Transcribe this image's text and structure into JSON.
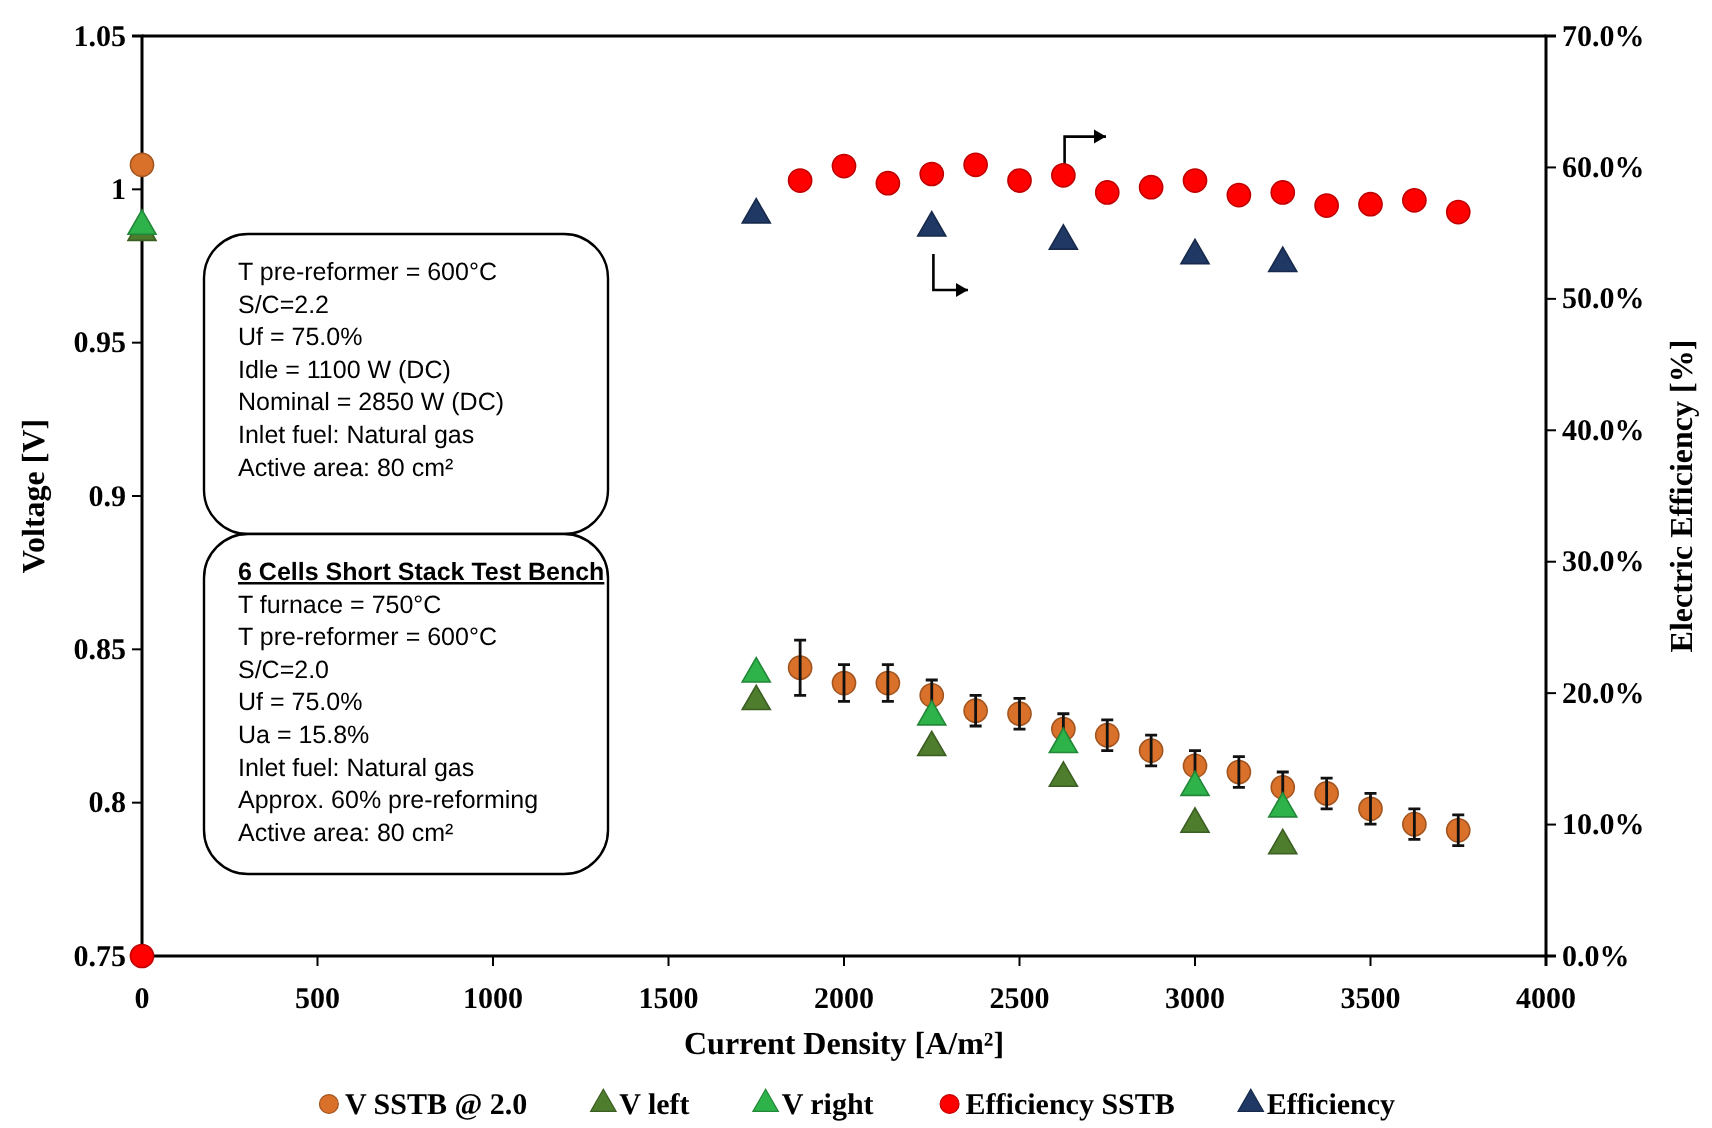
{
  "chart_data": {
    "type": "scatter",
    "xlabel": "Current Density [A/m²]",
    "ylabel": "Voltage [V]",
    "y2label": "Electric Efficiency [%]",
    "xlim": [
      0,
      4000
    ],
    "xticks": [
      0,
      500,
      1000,
      1500,
      2000,
      2500,
      3000,
      3500,
      4000
    ],
    "ylim": [
      0.75,
      1.05
    ],
    "yticks": [
      0.75,
      0.8,
      0.85,
      0.9,
      0.95,
      1,
      1.05
    ],
    "y2lim": [
      0,
      70
    ],
    "y2ticks": [
      {
        "value": 0,
        "label": "0.0%"
      },
      {
        "value": 10,
        "label": "10.0%"
      },
      {
        "value": 20,
        "label": "20.0%"
      },
      {
        "value": 30,
        "label": "30.0%"
      },
      {
        "value": 40,
        "label": "40.0%"
      },
      {
        "value": 50,
        "label": "50.0%"
      },
      {
        "value": 60,
        "label": "60.0%"
      },
      {
        "value": 70,
        "label": "70.0%"
      }
    ],
    "grid": false,
    "legend": "bottom",
    "annotations": [
      "T pre-reformer = 600°C",
      "S/C=2.2",
      "Uf = 75.0%",
      "Idle = 1100 W (DC)",
      "Nominal = 2850 W (DC)",
      "Inlet fuel: Natural gas",
      "Active area: 80 cm²",
      "6 Cells Short Stack Test Bench",
      "T furnace = 750°C",
      "T pre-reformer = 600°C",
      "S/C=2.0",
      "Uf = 75.0%",
      "Ua = 15.8%",
      "Inlet fuel: Natural gas",
      "Approx. 60% pre-reforming",
      "Active area: 80 cm²"
    ],
    "series": [
      {
        "name": "V SSTB @ 2.0",
        "color": "#d9712a",
        "marker": "circle",
        "x": [
          0,
          1875,
          2000,
          2125,
          2250,
          2375,
          2500,
          2625,
          2750,
          2875,
          3000,
          3125,
          3250,
          3375,
          3500,
          3625,
          3750
        ],
        "values": [
          1.008,
          0.844,
          0.839,
          0.839,
          0.835,
          0.83,
          0.829,
          0.824,
          0.822,
          0.817,
          0.812,
          0.81,
          0.805,
          0.803,
          0.798,
          0.793,
          0.791
        ],
        "errors": [
          null,
          0.009,
          0.006,
          0.006,
          0.005,
          0.005,
          0.005,
          0.005,
          0.005,
          0.005,
          0.005,
          0.005,
          0.005,
          0.005,
          0.005,
          0.005,
          0.005
        ]
      },
      {
        "name": "V left",
        "color": "#4e7d2d",
        "marker": "triangle",
        "x": [
          0,
          1750,
          2250,
          2625,
          3000,
          3250
        ],
        "values": [
          0.986,
          0.833,
          0.818,
          0.808,
          0.793,
          0.786
        ]
      },
      {
        "name": "V right",
        "color": "#2db34a",
        "marker": "triangle",
        "x": [
          0,
          1750,
          2250,
          2625,
          3000,
          3250
        ],
        "values": [
          0.988,
          0.842,
          0.828,
          0.819,
          0.805,
          0.798
        ]
      },
      {
        "name": "Efficiency SSTB",
        "color": "#ff0000",
        "marker": "circle",
        "axis": "y2",
        "x": [
          0,
          1875,
          2000,
          2125,
          2250,
          2375,
          2500,
          2625,
          2750,
          2875,
          3000,
          3125,
          3250,
          3375,
          3500,
          3625,
          3750
        ],
        "values": [
          0,
          59.0,
          60.1,
          58.8,
          59.5,
          60.2,
          59.0,
          59.4,
          58.1,
          58.5,
          59.0,
          57.9,
          58.1,
          57.1,
          57.2,
          57.5,
          56.6
        ]
      },
      {
        "name": "Efficiency",
        "color": "#1f3864",
        "marker": "triangle",
        "axis": "y2",
        "x": [
          1750,
          2250,
          2625,
          3000,
          3250
        ],
        "values": [
          56.4,
          55.4,
          54.4,
          53.3,
          52.7
        ]
      }
    ]
  }
}
